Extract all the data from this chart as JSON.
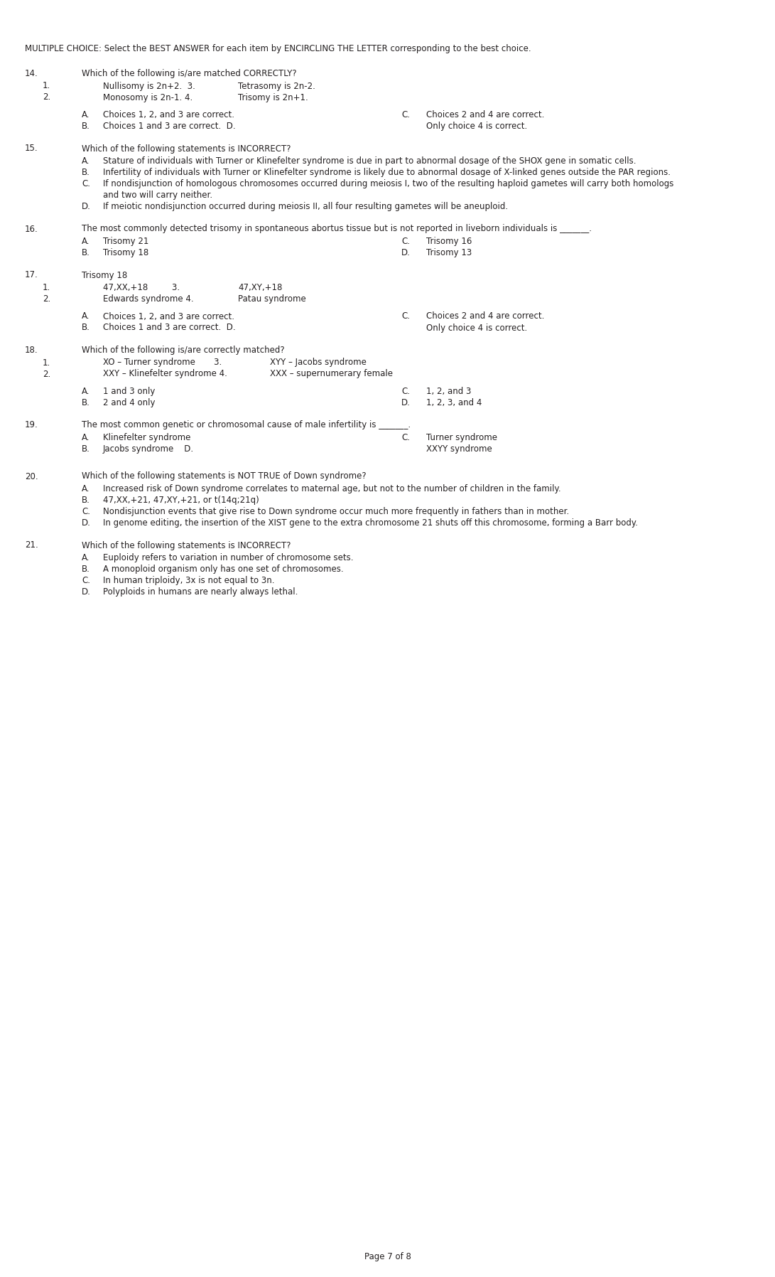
{
  "bg_color": "#ffffff",
  "text_color": "#231f20",
  "font_size": 8.5,
  "page_footer": "Page 7 of 8",
  "dpi": 100,
  "fig_width": 10.91,
  "fig_height": 17.96
}
